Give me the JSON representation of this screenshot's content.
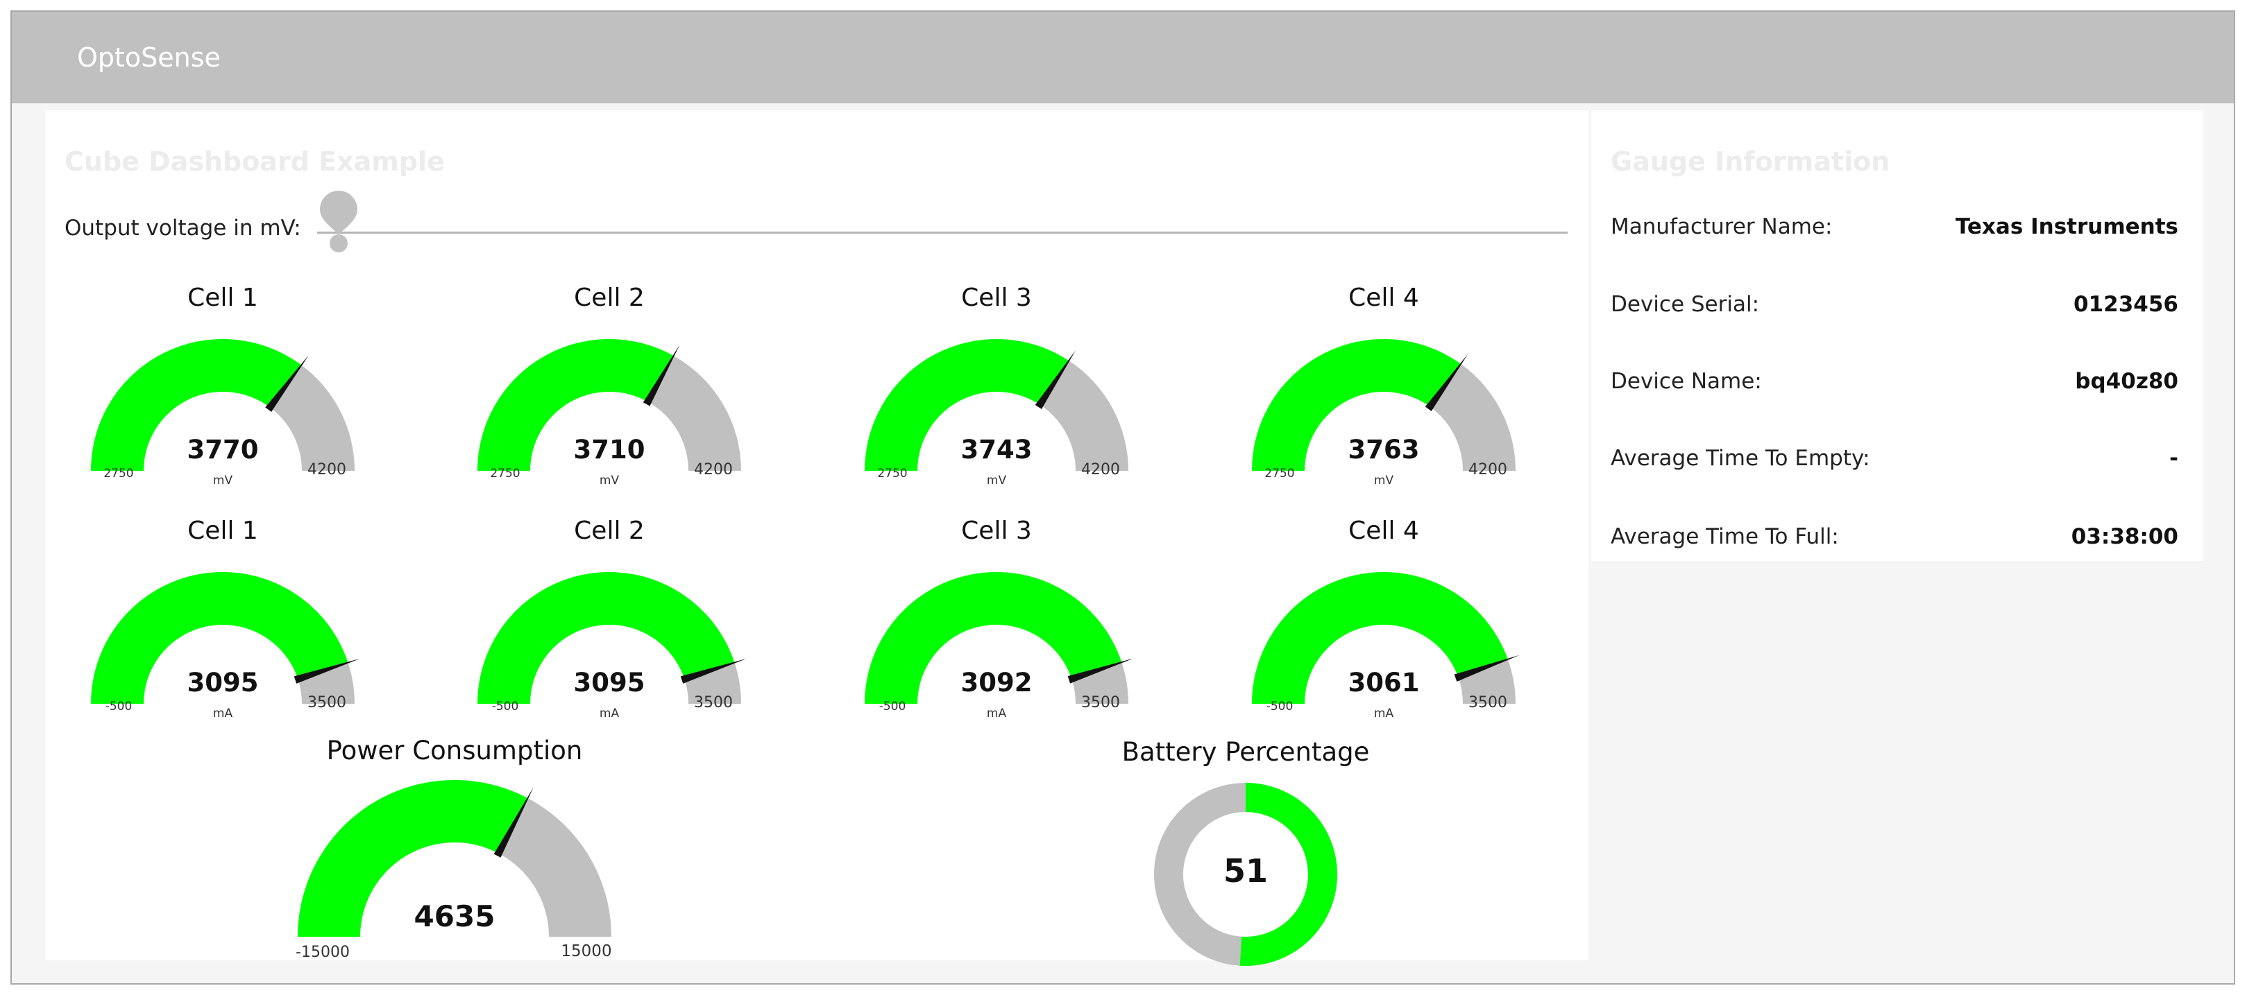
{
  "app": {
    "title": "OptoSense"
  },
  "main": {
    "title": "Cube Dashboard Example",
    "slider": {
      "label": "Output voltage in mV:"
    }
  },
  "voltage_gauges": [
    {
      "title": "Cell 1",
      "value": 3770,
      "display": "3770",
      "unit": "mV",
      "min": 2750,
      "max": 4200,
      "min_label": "2750",
      "max_label": "4200"
    },
    {
      "title": "Cell 2",
      "value": 3710,
      "display": "3710",
      "unit": "mV",
      "min": 2750,
      "max": 4200,
      "min_label": "2750",
      "max_label": "4200"
    },
    {
      "title": "Cell 3",
      "value": 3743,
      "display": "3743",
      "unit": "mV",
      "min": 2750,
      "max": 4200,
      "min_label": "2750",
      "max_label": "4200"
    },
    {
      "title": "Cell 4",
      "value": 3763,
      "display": "3763",
      "unit": "mV",
      "min": 2750,
      "max": 4200,
      "min_label": "2750",
      "max_label": "4200"
    }
  ],
  "current_gauges": [
    {
      "title": "Cell 1",
      "value": 3095,
      "display": "3095",
      "unit": "mA",
      "min": -500,
      "max": 3500,
      "min_label": "-500",
      "max_label": "3500"
    },
    {
      "title": "Cell 2",
      "value": 3095,
      "display": "3095",
      "unit": "mA",
      "min": -500,
      "max": 3500,
      "min_label": "-500",
      "max_label": "3500"
    },
    {
      "title": "Cell 3",
      "value": 3092,
      "display": "3092",
      "unit": "mA",
      "min": -500,
      "max": 3500,
      "min_label": "-500",
      "max_label": "3500"
    },
    {
      "title": "Cell 4",
      "value": 3061,
      "display": "3061",
      "unit": "mA",
      "min": -500,
      "max": 3500,
      "min_label": "-500",
      "max_label": "3500"
    }
  ],
  "power_gauge": {
    "title": "Power Consumption",
    "value": 4635,
    "display": "4635",
    "min": -15000,
    "max": 15000,
    "min_label": "-15000",
    "max_label": "15000"
  },
  "battery": {
    "title": "Battery Percentage",
    "value": 51,
    "display": "51",
    "max": 100
  },
  "info": {
    "title": "Gauge Information",
    "rows": [
      {
        "label": "Manufacturer Name:",
        "value": "Texas Instruments"
      },
      {
        "label": "Device Serial:",
        "value": "0123456"
      },
      {
        "label": "Device Name:",
        "value": "bq40z80"
      },
      {
        "label": "Average Time To Empty:",
        "value": "-"
      },
      {
        "label": "Average Time To Full:",
        "value": "03:38:00"
      }
    ]
  },
  "colors": {
    "fill": "#00ff00",
    "track": "#c0c0c0",
    "needle": "#111111",
    "header": "#c0c0c0"
  }
}
